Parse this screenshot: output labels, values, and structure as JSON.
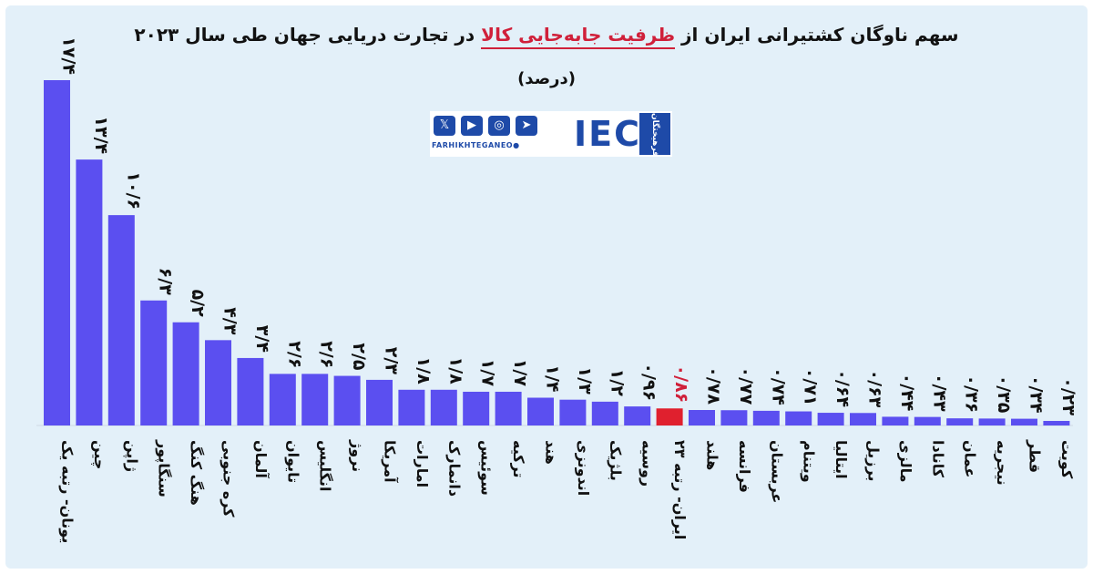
{
  "header": {
    "title_before": "سهم ناوگان کشتیرانی ایران از",
    "title_highlight": "ظرفیت جابه‌جایی کالا",
    "title_after": "در تجارت دریایی جهان طی سال ۲۰۲۳",
    "unit": "(درصد)"
  },
  "logo": {
    "handle": "FARHIKHTEGANEO●",
    "mark": "IEC",
    "badge": "فرهیختگان",
    "icons": [
      "x-icon",
      "youtube-icon",
      "instagram-icon",
      "telegram-icon"
    ]
  },
  "colors": {
    "bar": "#5b4ff0",
    "highlight_bar": "#e0202e",
    "background": "#e3f0f9",
    "title_highlight": "#d0203a"
  },
  "chart_data": {
    "type": "bar",
    "title": "سهم ناوگان کشتیرانی ایران از ظرفیت جابه‌جایی کالا در تجارت دریایی جهان طی سال ۲۰۲۳",
    "subtitle": "(درصد)",
    "xlabel": "",
    "ylabel": "",
    "ylim": [
      0,
      17.4
    ],
    "grid": false,
    "legend": "none",
    "highlight_index": 19,
    "categories": [
      "یونان- رتبه یک",
      "چین",
      "ژاپن",
      "سنگاپور",
      "هنگ کنگ",
      "کره جنوبی",
      "آلمان",
      "تایوان",
      "انگلیس",
      "نروژ",
      "آمریکا",
      "امارات",
      "دانمارک",
      "سوئیس",
      "ترکیه",
      "هند",
      "اندونزی",
      "بلژیک",
      "روسیه",
      "ایران- رتبه ۲۳",
      "هلند",
      "فرانسه",
      "عربستان",
      "ویتنام",
      "ایتالیا",
      "برزیل",
      "مالزی",
      "کانادا",
      "عمان",
      "نیجریه",
      "قطر",
      "کویت"
    ],
    "values": [
      17.4,
      13.4,
      10.6,
      6.3,
      5.2,
      4.3,
      3.4,
      2.6,
      2.6,
      2.5,
      2.3,
      1.8,
      1.8,
      1.7,
      1.7,
      1.4,
      1.3,
      1.2,
      0.96,
      0.86,
      0.78,
      0.77,
      0.74,
      0.71,
      0.64,
      0.63,
      0.44,
      0.43,
      0.36,
      0.35,
      0.34,
      0.23
    ],
    "value_labels": [
      "۱۷/۴",
      "۱۳/۴",
      "۱۰/۶",
      "۶/۳",
      "۵/۲",
      "۴/۳",
      "۳/۴",
      "۲/۶",
      "۲/۶",
      "۲/۵",
      "۲/۳",
      "۱/۸",
      "۱/۸",
      "۱/۷",
      "۱/۷",
      "۱/۴",
      "۱/۳",
      "۱/۲",
      "۰/۹۶",
      "۰/۸۶",
      "۰/۷۸",
      "۰/۷۷",
      "۰/۷۴",
      "۰/۷۱",
      "۰/۶۴",
      "۰/۶۳",
      "۰/۴۴",
      "۰/۴۳",
      "۰/۳۶",
      "۰/۳۵",
      "۰/۳۴",
      "۰/۲۳"
    ]
  }
}
